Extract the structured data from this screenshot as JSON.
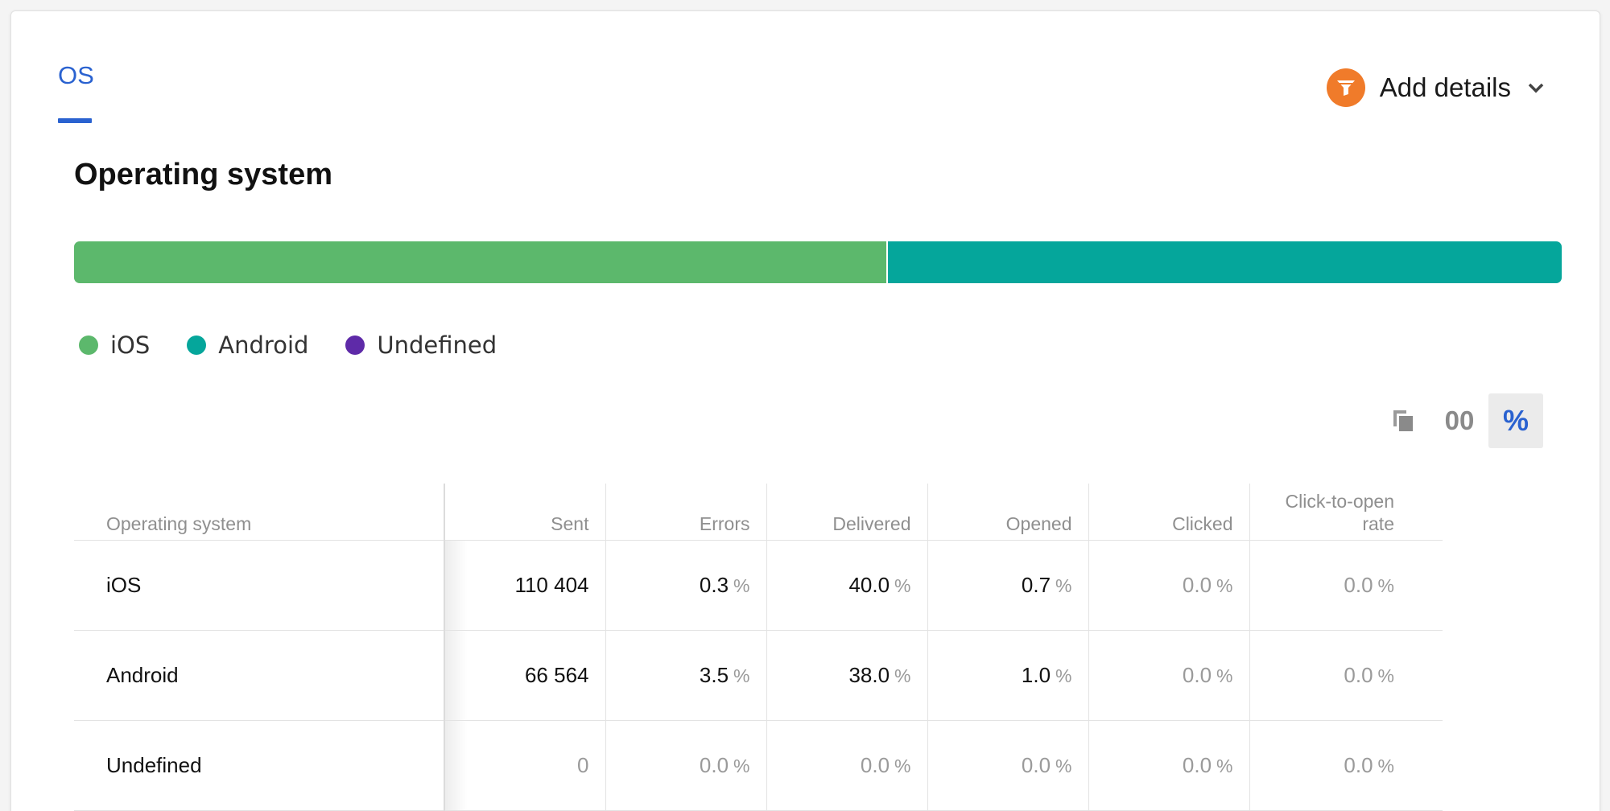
{
  "tab": {
    "label": "OS"
  },
  "add_details": {
    "label": "Add details"
  },
  "section": {
    "title": "Operating system"
  },
  "legend": [
    {
      "label": "iOS",
      "color": "#5cb86c"
    },
    {
      "label": "Android",
      "color": "#05a69b"
    },
    {
      "label": "Undefined",
      "color": "#5e2aa8"
    }
  ],
  "stacked_bar": [
    {
      "label": "iOS",
      "fraction": 0.546,
      "color": "#5cb86c"
    },
    {
      "label": "Android",
      "fraction": 0.454,
      "color": "#05a69b"
    },
    {
      "label": "Undefined",
      "fraction": 0.0,
      "color": "#5e2aa8"
    }
  ],
  "view_toggles": {
    "absolute_label": "00",
    "percent_label": "%",
    "selected": "percent"
  },
  "table": {
    "headers": {
      "os": "Operating system",
      "sent": "Sent",
      "errors": "Errors",
      "delivered": "Delivered",
      "opened": "Opened",
      "clicked": "Clicked",
      "cto_line1": "Click-to-open",
      "cto_line2": "rate"
    },
    "unit": "%",
    "rows": [
      {
        "os": "iOS",
        "sent": "110 404",
        "errors": "0.3",
        "delivered": "40.0",
        "opened": "0.7",
        "clicked": "0.0",
        "cto": "0.0"
      },
      {
        "os": "Android",
        "sent": "66 564",
        "errors": "3.5",
        "delivered": "38.0",
        "opened": "1.0",
        "clicked": "0.0",
        "cto": "0.0"
      },
      {
        "os": "Undefined",
        "sent": "0",
        "errors": "0.0",
        "delivered": "0.0",
        "opened": "0.0",
        "clicked": "0.0",
        "cto": "0.0"
      }
    ]
  }
}
